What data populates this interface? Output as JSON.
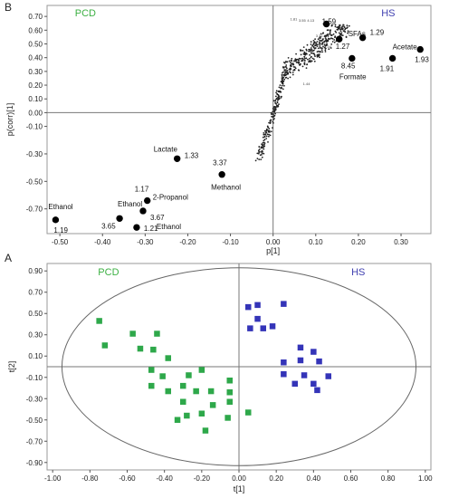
{
  "chart_data": [
    {
      "panel": "B",
      "type": "scatter",
      "xlabel": "p[1]",
      "ylabel": "p(corr)[1]",
      "xlim": [
        -0.53,
        0.37
      ],
      "ylim": [
        -0.88,
        0.78
      ],
      "xticks": [
        "-0.50",
        "-0.40",
        "-0.30",
        "-0.20",
        "-0.10",
        "0.00",
        "0.10",
        "0.20",
        "0.30"
      ],
      "yticks": [
        "0.70",
        "0.60",
        "0.50",
        "0.40",
        "0.30",
        "0.20",
        "0.10",
        "0.00",
        "-0.10",
        "-0.30",
        "-0.50",
        "-0.70"
      ],
      "group_labels": [
        {
          "text": "PCD",
          "x": -0.44,
          "y": 0.7,
          "color": "#3cb043"
        },
        {
          "text": "HS",
          "x": 0.27,
          "y": 0.7,
          "color": "#4040b0"
        }
      ],
      "highlighted_points": [
        {
          "x": 0.125,
          "y": 0.645,
          "labels": [
            "1.59"
          ]
        },
        {
          "x": 0.155,
          "y": 0.535,
          "labels": [
            "SFAs",
            "1.27"
          ]
        },
        {
          "x": 0.21,
          "y": 0.545,
          "labels": [
            "1.29"
          ]
        },
        {
          "x": 0.185,
          "y": 0.395,
          "labels": [
            "8.45",
            "Formate"
          ]
        },
        {
          "x": 0.28,
          "y": 0.395,
          "labels": [
            "Acetate",
            "1.91"
          ]
        },
        {
          "x": 0.345,
          "y": 0.46,
          "labels": [
            "1.93"
          ]
        },
        {
          "x": -0.225,
          "y": -0.335,
          "labels": [
            "Lactate",
            "1.33"
          ]
        },
        {
          "x": -0.12,
          "y": -0.45,
          "labels": [
            "3.37",
            "Methanol"
          ]
        },
        {
          "x": -0.295,
          "y": -0.64,
          "labels": [
            "1.17",
            "2-Propanol"
          ]
        },
        {
          "x": -0.305,
          "y": -0.715,
          "labels": [
            "Ethanol",
            "3.67"
          ]
        },
        {
          "x": -0.36,
          "y": -0.77,
          "labels": [
            "3.65"
          ]
        },
        {
          "x": -0.32,
          "y": -0.835,
          "labels": [
            "1.21",
            "Ethanol"
          ]
        },
        {
          "x": -0.51,
          "y": -0.78,
          "labels": [
            "Ethanol",
            "1.19"
          ]
        }
      ],
      "small_point_labels": [
        "1.81",
        "3.55",
        "4.13",
        "3.71",
        "3.77",
        "4.34",
        "1.44"
      ]
    },
    {
      "panel": "A",
      "type": "scatter",
      "xlabel": "t[1]",
      "ylabel": "t[2]",
      "xlim": [
        -1.03,
        1.03
      ],
      "ylim": [
        -0.97,
        0.97
      ],
      "xticks": [
        "-1.00",
        "-0.80",
        "-0.60",
        "-0.40",
        "-0.20",
        "0.00",
        "0.20",
        "0.40",
        "0.60",
        "0.80",
        "1.00"
      ],
      "yticks": [
        "0.90",
        "0.70",
        "0.50",
        "0.30",
        "0.10",
        "-0.10",
        "-0.30",
        "-0.50",
        "-0.70",
        "-0.90"
      ],
      "series": [
        {
          "name": "PCD",
          "color": "#2ea84a",
          "points": [
            [
              -0.75,
              0.43
            ],
            [
              -0.72,
              0.2
            ],
            [
              -0.57,
              0.31
            ],
            [
              -0.44,
              0.31
            ],
            [
              -0.53,
              0.17
            ],
            [
              -0.46,
              0.16
            ],
            [
              -0.38,
              0.08
            ],
            [
              -0.47,
              -0.03
            ],
            [
              -0.41,
              -0.09
            ],
            [
              -0.38,
              -0.23
            ],
            [
              -0.47,
              -0.18
            ],
            [
              -0.27,
              -0.08
            ],
            [
              -0.2,
              -0.03
            ],
            [
              -0.3,
              -0.18
            ],
            [
              -0.23,
              -0.23
            ],
            [
              -0.05,
              -0.13
            ],
            [
              -0.3,
              -0.33
            ],
            [
              -0.15,
              -0.23
            ],
            [
              -0.14,
              -0.36
            ],
            [
              -0.28,
              -0.46
            ],
            [
              -0.33,
              -0.5
            ],
            [
              -0.2,
              -0.44
            ],
            [
              -0.05,
              -0.24
            ],
            [
              -0.05,
              -0.33
            ],
            [
              -0.06,
              -0.48
            ],
            [
              0.05,
              -0.43
            ],
            [
              -0.18,
              -0.6
            ]
          ]
        },
        {
          "name": "HS",
          "color": "#3434b8",
          "points": [
            [
              0.05,
              0.56
            ],
            [
              0.1,
              0.58
            ],
            [
              0.1,
              0.45
            ],
            [
              0.24,
              0.59
            ],
            [
              0.13,
              0.36
            ],
            [
              0.18,
              0.38
            ],
            [
              0.06,
              0.36
            ],
            [
              0.33,
              0.18
            ],
            [
              0.4,
              0.14
            ],
            [
              0.43,
              0.05
            ],
            [
              0.33,
              0.06
            ],
            [
              0.24,
              0.04
            ],
            [
              0.24,
              -0.07
            ],
            [
              0.35,
              -0.08
            ],
            [
              0.48,
              -0.09
            ],
            [
              0.3,
              -0.16
            ],
            [
              0.4,
              -0.16
            ],
            [
              0.42,
              -0.22
            ]
          ]
        }
      ],
      "group_labels": [
        {
          "text": "PCD",
          "x": -0.7,
          "y": 0.86,
          "color": "#3cb043"
        },
        {
          "text": "HS",
          "x": 0.64,
          "y": 0.86,
          "color": "#4040b0"
        }
      ],
      "ellipse": {
        "cx": 0.0,
        "cy": 0.0,
        "rx": 0.95,
        "ry": 0.93
      }
    }
  ],
  "panel_labels": {
    "top": "B",
    "bottom": "A"
  }
}
